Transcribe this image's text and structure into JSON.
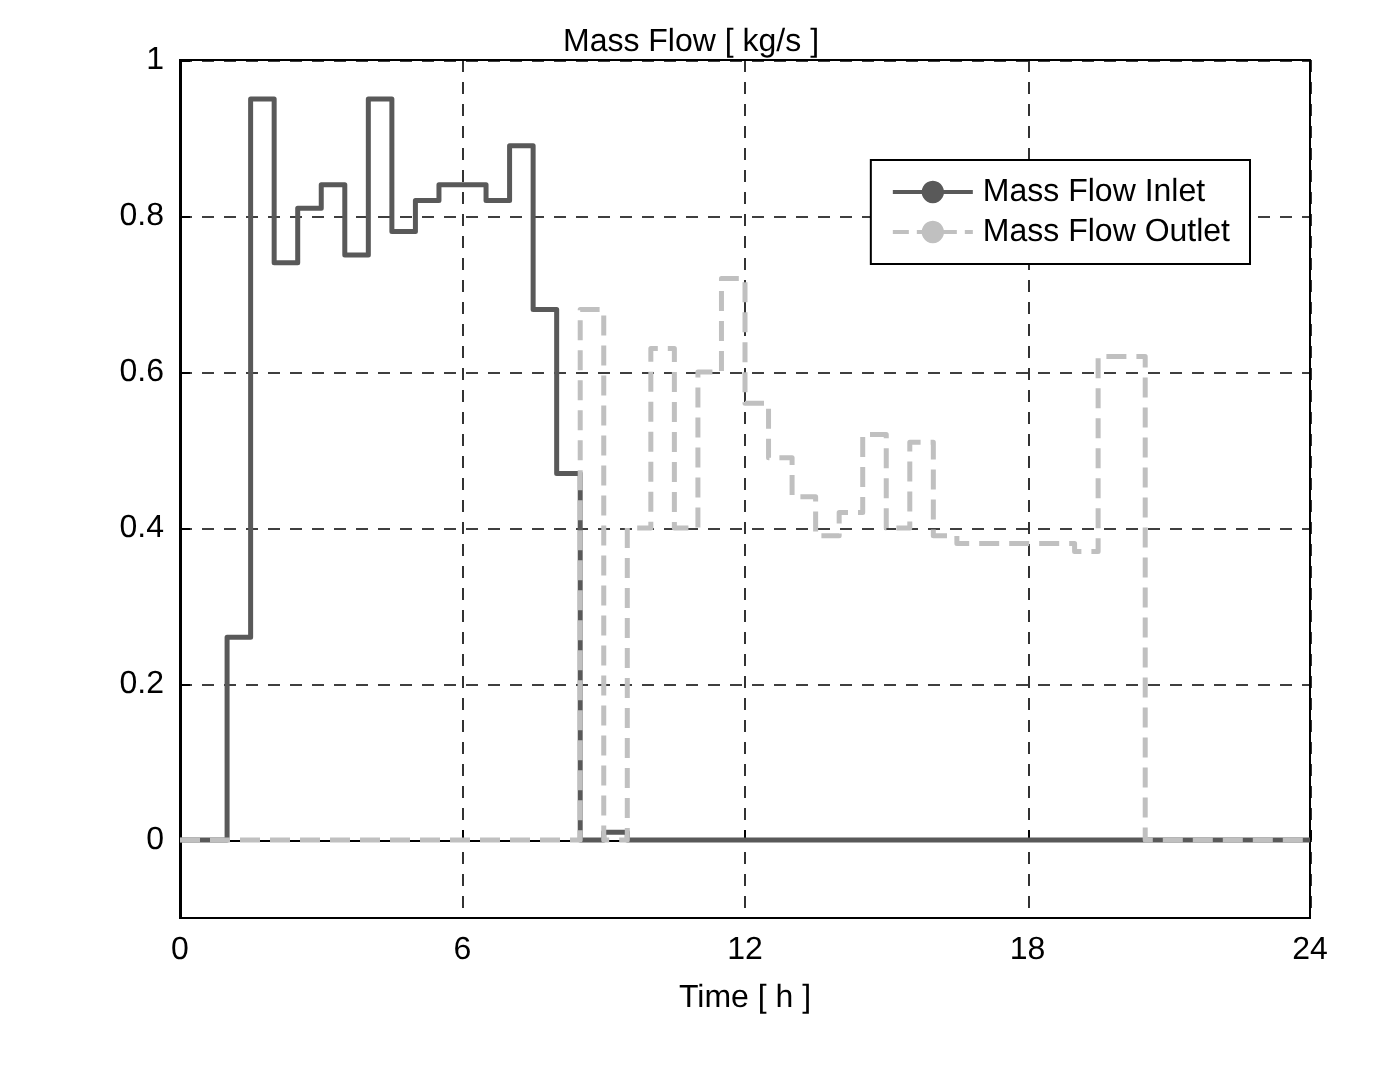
{
  "chart_data": {
    "type": "step",
    "title": "Mass Flow [ kg/s ]",
    "xlabel": "Time [ h ]",
    "xlim": [
      0,
      24
    ],
    "xticks": [
      0,
      6,
      12,
      18,
      24
    ],
    "ylim": [
      -0.1,
      1
    ],
    "yticks": [
      0,
      0.2,
      0.4,
      0.6,
      0.8,
      1
    ],
    "grid": true,
    "legend": "top right",
    "series": [
      {
        "name": "Mass Flow Inlet",
        "color": "#595959",
        "line_style": "solid",
        "x": [
          0,
          1,
          1.5,
          2,
          2.5,
          3,
          3.5,
          4,
          4.5,
          5,
          5.5,
          6.5,
          7,
          7.5,
          8,
          8.5,
          9,
          9.5,
          24
        ],
        "values": [
          0,
          0.26,
          0.95,
          0.74,
          0.81,
          0.84,
          0.75,
          0.95,
          0.78,
          0.82,
          0.84,
          0.82,
          0.89,
          0.68,
          0.47,
          0,
          0.01,
          0,
          0
        ]
      },
      {
        "name": "Mass Flow Outlet",
        "color": "#c0c0c0",
        "line_style": "dashed",
        "x": [
          0,
          8.5,
          9,
          9.5,
          10,
          10.5,
          11,
          11.5,
          12,
          12.5,
          13,
          13.5,
          14,
          14.5,
          15,
          15.5,
          16,
          16.5,
          19,
          19.5,
          20.5,
          24
        ],
        "values": [
          0,
          0.68,
          0,
          0.4,
          0.63,
          0.4,
          0.6,
          0.72,
          0.56,
          0.49,
          0.44,
          0.39,
          0.42,
          0.52,
          0.4,
          0.51,
          0.39,
          0.38,
          0.37,
          0.62,
          0,
          0
        ]
      }
    ]
  }
}
